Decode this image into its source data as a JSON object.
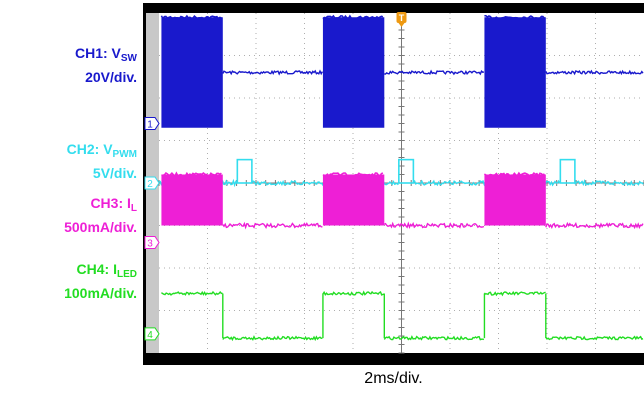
{
  "colors": {
    "ch1": "#1919cc",
    "ch2": "#33ddee",
    "ch3": "#ee1fd6",
    "ch4": "#22dd22",
    "trigger": "#ee9911",
    "screen": "#ffffff",
    "frame": "#000000",
    "strip": "#c8c8c8"
  },
  "labels": {
    "ch1": {
      "prefix": "CH1: V",
      "sub": "SW",
      "scale": "20V/div."
    },
    "ch2": {
      "prefix": "CH2: V",
      "sub": "PWM",
      "scale": "5V/div."
    },
    "ch3": {
      "prefix": "CH3: I",
      "sub": "L",
      "scale": "500mA/div."
    },
    "ch4": {
      "prefix": "CH4: I",
      "sub": "LED",
      "scale": "100mA/div."
    }
  },
  "timebase": "2ms/div.",
  "markers": {
    "ch1": "1",
    "ch2": "2",
    "ch3": "3",
    "ch4": "4",
    "trigger": "T"
  },
  "chart_data": {
    "type": "line",
    "x_unit": "div",
    "x_divisions": 10,
    "y_divisions": 8,
    "grid": true,
    "trigger_x_div": 5,
    "period_div": 3.33,
    "pwm_duty_fraction": 0.38,
    "series": [
      {
        "key": "ch1",
        "scale": "20V/div.",
        "ground_div": 5.4,
        "level_on_div": 0.0,
        "burst_band_div": 2.6,
        "low_level_div": 4.5
      },
      {
        "key": "ch2",
        "scale": "5V/div.",
        "ground_div": 4.0,
        "low_level_div": 4.0,
        "pulse_level_div": 4.55,
        "pulse_width_div": 0.15
      },
      {
        "key": "ch3",
        "scale": "500mA/div.",
        "ground_div": 2.6,
        "burst_band_div": 1.2,
        "burst_center_div": 3.6,
        "low_level_div": 3.0
      },
      {
        "key": "ch4",
        "scale": "100mA/div.",
        "ground_div": 0.45,
        "high_level_div": 1.4,
        "low_level_div": 0.35
      }
    ]
  }
}
